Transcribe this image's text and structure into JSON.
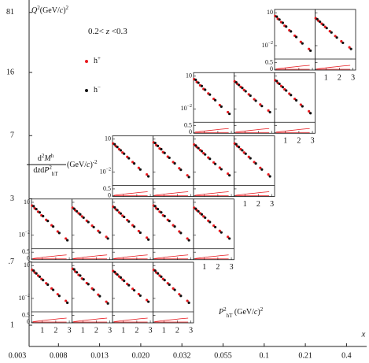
{
  "chart_data": {
    "type": "multiplicity",
    "annotation": [
      {
        "t": "0.2< "
      },
      {
        "t": "z",
        "s": "i"
      },
      {
        "t": " <0.3"
      }
    ],
    "outer_xlabel": "x",
    "outer_ylabel": [
      {
        "t": "Q",
        "s": "i"
      },
      {
        "t": "2",
        "s": "sup"
      },
      {
        "t": "(GeV/"
      },
      {
        "t": "c",
        "s": "i"
      },
      {
        "t": ")"
      },
      {
        "t": "2",
        "s": "sup"
      }
    ],
    "x_edges": [
      "0.003",
      "0.008",
      "0.013",
      "0.020",
      "0.032",
      "0.055",
      "0.1",
      "0.21",
      "0.4"
    ],
    "q2_edges": [
      "1",
      ".7",
      "3",
      "7",
      "16",
      "81"
    ],
    "panel_ylabel_num": [
      {
        "t": "d"
      },
      {
        "t": "2",
        "s": "sup"
      },
      {
        "t": "M",
        "s": "i"
      },
      {
        "t": "h",
        "s": "sup"
      }
    ],
    "panel_ylabel_den": [
      {
        "t": "d"
      },
      {
        "t": "z",
        "s": "i"
      },
      {
        "t": "d"
      },
      {
        "t": "P",
        "s": "i"
      },
      {
        "t": "2",
        "s": "sup"
      },
      {
        "t": "hT",
        "s": "sub"
      }
    ],
    "panel_ylabel_unit": [
      {
        "t": " (GeV/"
      },
      {
        "t": "c",
        "s": "i"
      },
      {
        "t": ")"
      },
      {
        "t": "-2",
        "s": "sup"
      }
    ],
    "panel_xlabel": [
      {
        "t": "P",
        "s": "i"
      },
      {
        "t": "2",
        "s": "sup"
      },
      {
        "t": "hT",
        "s": "sub"
      },
      {
        "t": " (GeV/"
      },
      {
        "t": "c",
        "s": "i"
      },
      {
        "t": ")"
      },
      {
        "t": "2",
        "s": "sup"
      }
    ],
    "legend": [
      {
        "text": "h",
        "sup": "+",
        "color": "#e8191e"
      },
      {
        "text": "h",
        "sup": "−",
        "color": "#111111"
      }
    ],
    "x": [
      0.3,
      0.5,
      0.75,
      1.0,
      1.35,
      1.75,
      2.2,
      2.8
    ],
    "xlim": [
      0.2,
      3.2
    ],
    "xticks": [
      1,
      2,
      3
    ],
    "ylim": [
      0.0006,
      20
    ],
    "log_y": true,
    "yticks": [
      10,
      {
        "value": 0.01,
        "label": "10",
        "sup": "−2"
      }
    ],
    "ratio_ylim": [
      0,
      0.7
    ],
    "ratio_yticks": [
      0.5,
      0
    ],
    "band": [
      0.02,
      0.05,
      0.08,
      0.11,
      0.15,
      0.19,
      0.24,
      0.29
    ],
    "band_color": "#e8191e",
    "panels": [
      {
        "x_bin": 0,
        "q2_bin": 0,
        "series": [
          {
            "values": [
              4.0,
              2.3,
              1.2,
              0.6,
              0.24,
              0.08,
              0.024,
              0.006
            ]
          },
          {
            "values": [
              3.4,
              1.9,
              0.95,
              0.47,
              0.18,
              0.06,
              0.017,
              0.004
            ]
          }
        ]
      },
      {
        "x_bin": 1,
        "q2_bin": 0,
        "series": [
          {
            "values": [
              5.0,
              2.8,
              1.4,
              0.65,
              0.25,
              0.08,
              0.022,
              0.005
            ]
          },
          {
            "values": [
              4.4,
              2.4,
              1.2,
              0.55,
              0.2,
              0.062,
              0.016,
              0.0035
            ]
          }
        ]
      },
      {
        "x_bin": 2,
        "q2_bin": 0,
        "series": [
          {
            "values": [
              3.2,
              1.9,
              1.0,
              0.52,
              0.21,
              0.075,
              0.025,
              0.007
            ]
          },
          {
            "values": [
              2.6,
              1.5,
              0.8,
              0.4,
              0.16,
              0.055,
              0.018,
              0.005
            ]
          }
        ]
      },
      {
        "x_bin": 3,
        "q2_bin": 0,
        "series": [
          {
            "values": [
              4.0,
              2.3,
              1.2,
              0.6,
              0.24,
              0.08,
              0.024,
              0.006
            ]
          },
          {
            "values": [
              3.4,
              1.9,
              0.95,
              0.47,
              0.18,
              0.06,
              0.017,
              0.004
            ]
          }
        ]
      },
      {
        "x_bin": 0,
        "q2_bin": 1,
        "series": [
          {
            "values": [
              5.0,
              2.8,
              1.4,
              0.65,
              0.25,
              0.08,
              0.022,
              0.005
            ]
          },
          {
            "values": [
              4.4,
              2.4,
              1.2,
              0.55,
              0.2,
              0.062,
              0.016,
              0.0035
            ]
          }
        ]
      },
      {
        "x_bin": 1,
        "q2_bin": 1,
        "series": [
          {
            "values": [
              3.2,
              1.9,
              1.0,
              0.52,
              0.21,
              0.075,
              0.025,
              0.007
            ]
          },
          {
            "values": [
              2.6,
              1.5,
              0.8,
              0.4,
              0.16,
              0.055,
              0.018,
              0.005
            ]
          }
        ]
      },
      {
        "x_bin": 2,
        "q2_bin": 1,
        "series": [
          {
            "values": [
              4.0,
              2.3,
              1.2,
              0.6,
              0.24,
              0.08,
              0.024,
              0.006
            ]
          },
          {
            "values": [
              3.4,
              1.9,
              0.95,
              0.47,
              0.18,
              0.06,
              0.017,
              0.004
            ]
          }
        ]
      },
      {
        "x_bin": 3,
        "q2_bin": 1,
        "series": [
          {
            "values": [
              5.0,
              2.8,
              1.4,
              0.65,
              0.25,
              0.08,
              0.022,
              0.005
            ]
          },
          {
            "values": [
              4.4,
              2.4,
              1.2,
              0.55,
              0.2,
              0.062,
              0.016,
              0.0035
            ]
          }
        ]
      },
      {
        "x_bin": 4,
        "q2_bin": 1,
        "series": [
          {
            "values": [
              3.2,
              1.9,
              1.0,
              0.52,
              0.21,
              0.075,
              0.025,
              0.007
            ]
          },
          {
            "values": [
              2.6,
              1.5,
              0.8,
              0.4,
              0.16,
              0.055,
              0.018,
              0.005
            ]
          }
        ]
      },
      {
        "x_bin": 2,
        "q2_bin": 2,
        "series": [
          {
            "values": [
              4.0,
              2.3,
              1.2,
              0.6,
              0.24,
              0.08,
              0.024,
              0.006
            ]
          },
          {
            "values": [
              3.4,
              1.9,
              0.95,
              0.47,
              0.18,
              0.06,
              0.017,
              0.004
            ]
          }
        ]
      },
      {
        "x_bin": 3,
        "q2_bin": 2,
        "series": [
          {
            "values": [
              5.0,
              2.8,
              1.4,
              0.65,
              0.25,
              0.08,
              0.022,
              0.005
            ]
          },
          {
            "values": [
              4.4,
              2.4,
              1.2,
              0.55,
              0.2,
              0.062,
              0.016,
              0.0035
            ]
          }
        ]
      },
      {
        "x_bin": 4,
        "q2_bin": 2,
        "series": [
          {
            "values": [
              3.2,
              1.9,
              1.0,
              0.52,
              0.21,
              0.075,
              0.025,
              0.007
            ]
          },
          {
            "values": [
              2.6,
              1.5,
              0.8,
              0.4,
              0.16,
              0.055,
              0.018,
              0.005
            ]
          }
        ]
      },
      {
        "x_bin": 5,
        "q2_bin": 2,
        "series": [
          {
            "values": [
              4.0,
              2.3,
              1.2,
              0.6,
              0.24,
              0.08,
              0.024,
              0.006
            ]
          },
          {
            "values": [
              3.4,
              1.9,
              0.95,
              0.47,
              0.18,
              0.06,
              0.017,
              0.004
            ]
          }
        ]
      },
      {
        "x_bin": 4,
        "q2_bin": 3,
        "series": [
          {
            "values": [
              5.0,
              2.8,
              1.4,
              0.65,
              0.25,
              0.08,
              0.022,
              0.005
            ]
          },
          {
            "values": [
              4.4,
              2.4,
              1.2,
              0.55,
              0.2,
              0.062,
              0.016,
              0.0035
            ]
          }
        ]
      },
      {
        "x_bin": 5,
        "q2_bin": 3,
        "series": [
          {
            "values": [
              3.2,
              1.9,
              1.0,
              0.52,
              0.21,
              0.075,
              0.025,
              0.007
            ]
          },
          {
            "values": [
              2.6,
              1.5,
              0.8,
              0.4,
              0.16,
              0.055,
              0.018,
              0.005
            ]
          }
        ]
      },
      {
        "x_bin": 6,
        "q2_bin": 3,
        "series": [
          {
            "values": [
              4.0,
              2.3,
              1.2,
              0.6,
              0.24,
              0.08,
              0.024,
              0.006
            ]
          },
          {
            "values": [
              3.4,
              1.9,
              0.95,
              0.47,
              0.18,
              0.06,
              0.017,
              0.004
            ]
          }
        ]
      },
      {
        "x_bin": 6,
        "q2_bin": 4,
        "series": [
          {
            "values": [
              5.0,
              2.8,
              1.4,
              0.65,
              0.25,
              0.08,
              0.022,
              0.005
            ]
          },
          {
            "values": [
              4.4,
              2.4,
              1.2,
              0.55,
              0.2,
              0.062,
              0.016,
              0.0035
            ]
          }
        ]
      },
      {
        "x_bin": 7,
        "q2_bin": 4,
        "series": [
          {
            "values": [
              3.2,
              1.9,
              1.0,
              0.52,
              0.21,
              0.075,
              0.025,
              0.007
            ]
          },
          {
            "values": [
              2.6,
              1.5,
              0.8,
              0.4,
              0.16,
              0.055,
              0.018,
              0.005
            ]
          }
        ]
      }
    ]
  }
}
